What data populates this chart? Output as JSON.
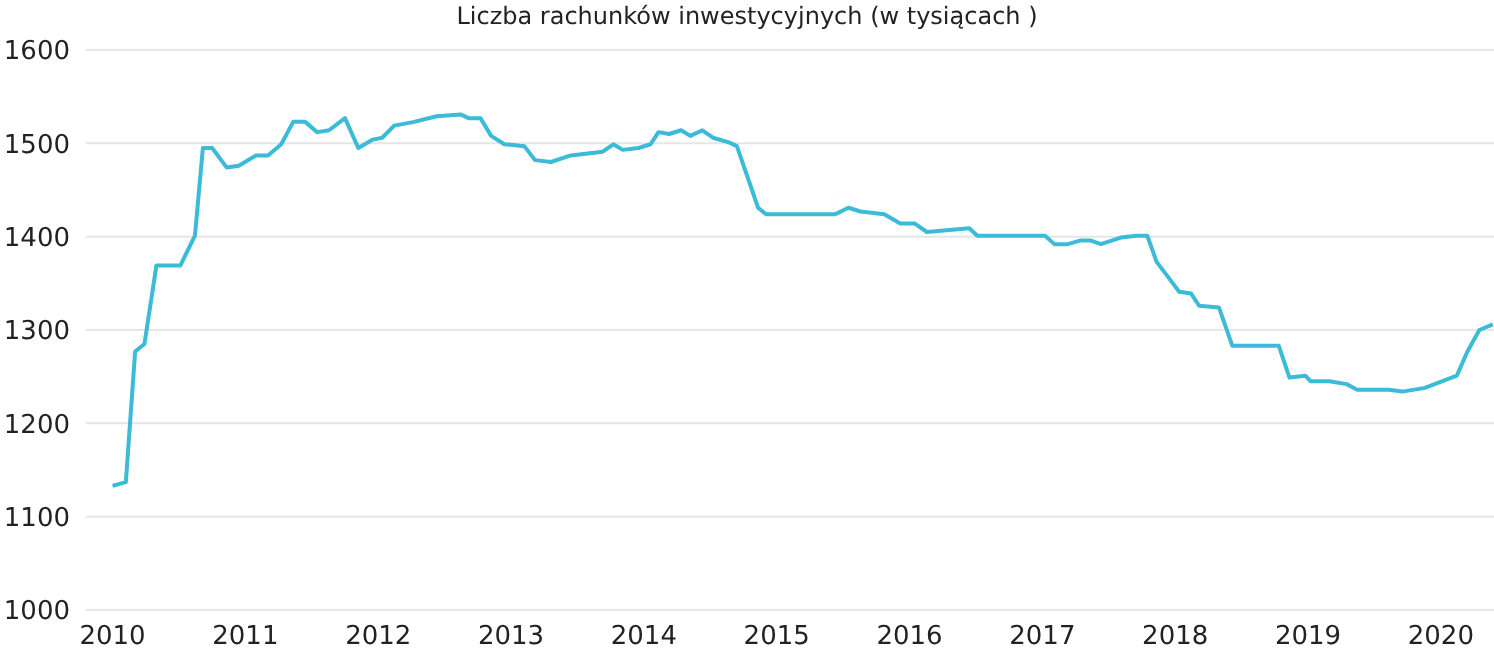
{
  "chart_data": {
    "type": "line",
    "title": "Liczba rachunków inwestycyjnych (w tysiącach )",
    "x": [
      2010.0,
      2010.1,
      2010.17,
      2010.24,
      2010.33,
      2010.51,
      2010.62,
      2010.68,
      2010.75,
      2010.86,
      2010.95,
      2011.08,
      2011.17,
      2011.27,
      2011.36,
      2011.45,
      2011.54,
      2011.63,
      2011.75,
      2011.85,
      2011.96,
      2012.03,
      2012.12,
      2012.27,
      2012.44,
      2012.62,
      2012.68,
      2012.77,
      2012.85,
      2012.95,
      2013.1,
      2013.18,
      2013.3,
      2013.45,
      2013.69,
      2013.77,
      2013.84,
      2013.96,
      2014.05,
      2014.11,
      2014.19,
      2014.28,
      2014.35,
      2014.44,
      2014.52,
      2014.64,
      2014.7,
      2014.86,
      2014.92,
      2015.15,
      2015.44,
      2015.54,
      2015.63,
      2015.81,
      2015.93,
      2016.04,
      2016.13,
      2016.45,
      2016.51,
      2016.69,
      2017.02,
      2017.09,
      2017.19,
      2017.29,
      2017.36,
      2017.44,
      2017.59,
      2017.71,
      2017.79,
      2017.86,
      2017.94,
      2018.03,
      2018.12,
      2018.18,
      2018.33,
      2018.43,
      2018.66,
      2018.78,
      2018.86,
      2018.98,
      2019.02,
      2019.16,
      2019.29,
      2019.37,
      2019.61,
      2019.71,
      2019.88,
      2020.12,
      2020.2,
      2020.29,
      2020.39
    ],
    "series": [
      {
        "color": "#3bbbd8",
        "values": [
          1133,
          1137,
          1277,
          1285,
          1369,
          1369,
          1401,
          1495,
          1495,
          1474,
          1476,
          1487,
          1487,
          1499,
          1523,
          1523,
          1512,
          1514,
          1527,
          1495,
          1504,
          1506,
          1519,
          1523,
          1529,
          1531,
          1527,
          1527,
          1508,
          1499,
          1497,
          1482,
          1480,
          1487,
          1491,
          1499,
          1493,
          1495,
          1499,
          1512,
          1510,
          1514,
          1508,
          1514,
          1506,
          1501,
          1497,
          1431,
          1424,
          1424,
          1424,
          1431,
          1427,
          1424,
          1414,
          1414,
          1405,
          1409,
          1401,
          1401,
          1401,
          1392,
          1392,
          1396,
          1396,
          1392,
          1399,
          1401,
          1401,
          1373,
          1358,
          1341,
          1339,
          1326,
          1324,
          1283,
          1283,
          1283,
          1249,
          1251,
          1245,
          1245,
          1242,
          1236,
          1236,
          1234,
          1238,
          1251,
          1277,
          1300,
          1306
        ]
      }
    ],
    "xlim": [
      2009.8,
      2020.4
    ],
    "xticks": [
      2010,
      2011,
      2012,
      2013,
      2014,
      2015,
      2016,
      2017,
      2018,
      2019,
      2020
    ],
    "ylim": [
      1000,
      1600
    ],
    "yticks": [
      1000,
      1100,
      1200,
      1300,
      1400,
      1500,
      1600
    ],
    "grid": "y",
    "legend": false,
    "marker": "none",
    "line_style": "solid"
  }
}
